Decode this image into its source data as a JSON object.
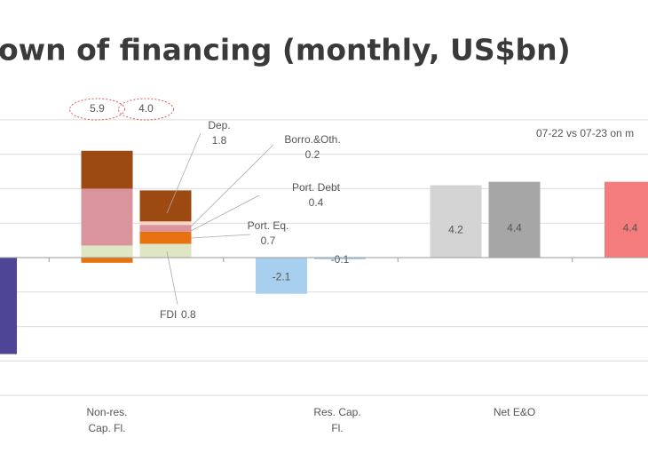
{
  "chart_data": {
    "type": "bar",
    "title": "own of financing (monthly, US$bn)",
    "note": "07-22 vs 07-23 on m",
    "ylim": [
      -8.1,
      8.1
    ],
    "yticks": [
      -8,
      -6,
      -4,
      -2,
      0,
      2,
      4,
      6,
      8
    ],
    "grid": true,
    "components": [
      {
        "name": "FDI",
        "color": "#dfe6c4"
      },
      {
        "name": "Port. Eq.",
        "color": "#e8720f"
      },
      {
        "name": "Port. Debt",
        "color": "#d9959b"
      },
      {
        "name": "Borro.&Oth.",
        "color": "#f8d3c6"
      },
      {
        "name": "Dep.",
        "color": "#9c4a12"
      }
    ],
    "groups": [
      {
        "label": null,
        "bars": [
          null,
          {
            "value": -5.6,
            "color": "#4f4597"
          }
        ]
      },
      {
        "label": [
          "Non-res.",
          "Cap. Fl."
        ],
        "bars": [
          {
            "segments": [
              0.7,
              -0.3,
              3.3,
              0,
              2.2
            ],
            "total": 5.9
          },
          {
            "segments": [
              0.8,
              0.7,
              0.4,
              0.2,
              1.8
            ],
            "total": {
              "value": 4,
              "label": "4.0"
            }
          }
        ]
      },
      {
        "label": [
          "Res. Cap.",
          "Fl."
        ],
        "bars": [
          {
            "value": -2.1,
            "color": "#a9cfee"
          },
          {
            "value": -0.1,
            "color": "#a9cfee"
          }
        ]
      },
      {
        "label": [
          "Net E&O"
        ],
        "bars": [
          {
            "value": 4.2,
            "color": "#d4d4d4"
          },
          {
            "value": 4.4,
            "color": "#a6a6a6"
          }
        ]
      },
      {
        "label": null,
        "bars": [
          {
            "value": 4.4,
            "color": "#f47c7c"
          }
        ]
      }
    ]
  }
}
